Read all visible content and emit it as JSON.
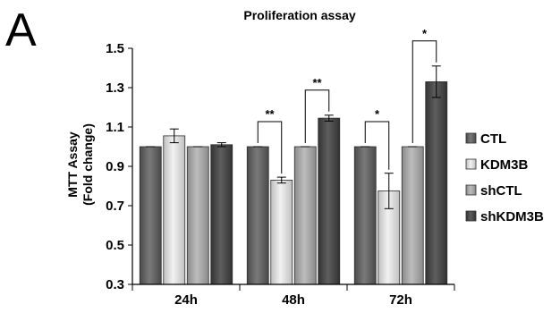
{
  "panel_letter": "A",
  "chart_data": {
    "type": "bar",
    "title": "Proliferation assay",
    "xlabel": "",
    "ylabel_lines": [
      "MTT Assay",
      "(Fold change)"
    ],
    "categories": [
      "24h",
      "48h",
      "72h"
    ],
    "ylim": [
      0.3,
      1.5
    ],
    "yticks": [
      "0.3",
      "0.5",
      "0.7",
      "0.9",
      "1.1",
      "1.3",
      "1.5"
    ],
    "grid": false,
    "legend_position": "right",
    "series": [
      {
        "name": "CTL",
        "color": "#666666",
        "values": [
          1.0,
          1.0,
          1.0
        ],
        "errors": [
          0.0,
          0.0,
          0.0
        ]
      },
      {
        "name": "KDM3B",
        "color": "#d9d9d9",
        "values": [
          1.055,
          0.83,
          0.775
        ],
        "errors": [
          0.035,
          0.015,
          0.09
        ]
      },
      {
        "name": "shCTL",
        "color": "#a6a6a6",
        "values": [
          1.0,
          1.0,
          1.0
        ],
        "errors": [
          0.0,
          0.0,
          0.0
        ]
      },
      {
        "name": "shKDM3B",
        "color": "#4d4d4d",
        "values": [
          1.01,
          1.145,
          1.33
        ],
        "errors": [
          0.01,
          0.015,
          0.08
        ]
      }
    ],
    "significance": [
      {
        "category": 1,
        "from_series": 0,
        "to_series": 1,
        "label": "**"
      },
      {
        "category": 1,
        "from_series": 2,
        "to_series": 3,
        "label": "**"
      },
      {
        "category": 2,
        "from_series": 0,
        "to_series": 1,
        "label": "*"
      },
      {
        "category": 2,
        "from_series": 2,
        "to_series": 3,
        "label": "*"
      }
    ]
  }
}
